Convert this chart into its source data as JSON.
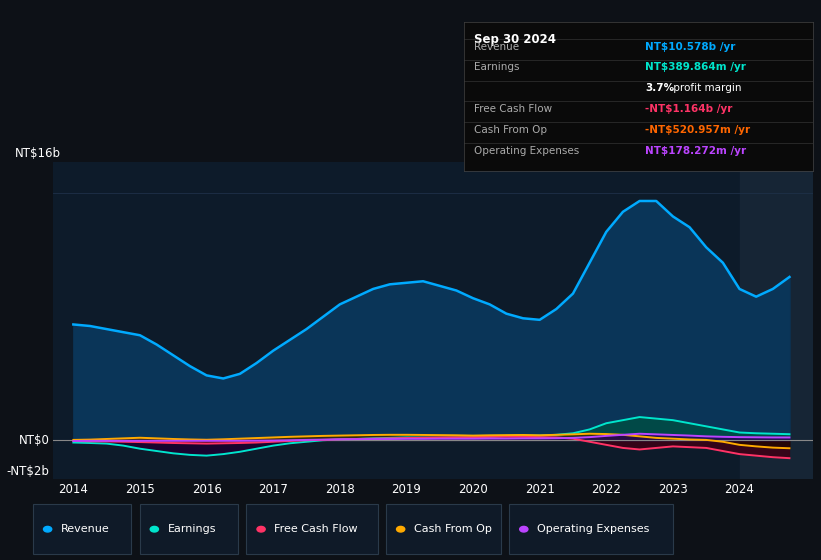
{
  "bg_color": "#0d1117",
  "plot_bg_color": "#0d1b2a",
  "plot_bg_shade": "#111d2e",
  "grid_color": "#1e3048",
  "shade_color": "#162535",
  "x_years": [
    2014.0,
    2014.25,
    2014.5,
    2014.75,
    2015.0,
    2015.25,
    2015.5,
    2015.75,
    2016.0,
    2016.25,
    2016.5,
    2016.75,
    2017.0,
    2017.25,
    2017.5,
    2017.75,
    2018.0,
    2018.25,
    2018.5,
    2018.75,
    2019.0,
    2019.25,
    2019.5,
    2019.75,
    2020.0,
    2020.25,
    2020.5,
    2020.75,
    2021.0,
    2021.25,
    2021.5,
    2021.75,
    2022.0,
    2022.25,
    2022.5,
    2022.75,
    2023.0,
    2023.25,
    2023.5,
    2023.75,
    2024.0,
    2024.25,
    2024.5,
    2024.75
  ],
  "revenue": [
    7.5,
    7.4,
    7.2,
    7.0,
    6.8,
    6.2,
    5.5,
    4.8,
    4.2,
    4.0,
    4.3,
    5.0,
    5.8,
    6.5,
    7.2,
    8.0,
    8.8,
    9.3,
    9.8,
    10.1,
    10.2,
    10.3,
    10.0,
    9.7,
    9.2,
    8.8,
    8.2,
    7.9,
    7.8,
    8.5,
    9.5,
    11.5,
    13.5,
    14.8,
    15.5,
    15.5,
    14.5,
    13.8,
    12.5,
    11.5,
    9.8,
    9.3,
    9.8,
    10.578
  ],
  "earnings": [
    -0.15,
    -0.18,
    -0.22,
    -0.35,
    -0.55,
    -0.7,
    -0.85,
    -0.95,
    -1.0,
    -0.9,
    -0.75,
    -0.55,
    -0.35,
    -0.2,
    -0.1,
    0.0,
    0.05,
    0.08,
    0.12,
    0.15,
    0.18,
    0.17,
    0.16,
    0.17,
    0.18,
    0.22,
    0.28,
    0.3,
    0.3,
    0.35,
    0.45,
    0.7,
    1.1,
    1.3,
    1.5,
    1.4,
    1.3,
    1.1,
    0.9,
    0.7,
    0.5,
    0.45,
    0.42,
    0.39
  ],
  "free_cash_flow": [
    -0.05,
    -0.07,
    -0.08,
    -0.1,
    -0.12,
    -0.15,
    -0.18,
    -0.2,
    -0.22,
    -0.2,
    -0.18,
    -0.15,
    -0.1,
    -0.05,
    0.0,
    0.02,
    0.05,
    0.08,
    0.1,
    0.12,
    0.14,
    0.16,
    0.18,
    0.19,
    0.2,
    0.22,
    0.23,
    0.22,
    0.2,
    0.18,
    0.1,
    -0.1,
    -0.3,
    -0.5,
    -0.6,
    -0.5,
    -0.4,
    -0.45,
    -0.5,
    -0.7,
    -0.9,
    -1.0,
    -1.1,
    -1.164
  ],
  "cash_from_op": [
    0.02,
    0.04,
    0.08,
    0.12,
    0.16,
    0.12,
    0.08,
    0.05,
    0.03,
    0.06,
    0.1,
    0.14,
    0.18,
    0.22,
    0.25,
    0.28,
    0.3,
    0.32,
    0.34,
    0.35,
    0.35,
    0.34,
    0.33,
    0.32,
    0.3,
    0.32,
    0.33,
    0.34,
    0.32,
    0.35,
    0.38,
    0.42,
    0.4,
    0.35,
    0.25,
    0.15,
    0.1,
    0.05,
    0.02,
    -0.1,
    -0.3,
    -0.4,
    -0.48,
    -0.521
  ],
  "operating_expenses": [
    -0.05,
    -0.04,
    -0.04,
    -0.04,
    -0.04,
    -0.04,
    -0.04,
    -0.04,
    -0.04,
    -0.04,
    -0.04,
    -0.03,
    -0.02,
    0.0,
    0.02,
    0.04,
    0.06,
    0.07,
    0.08,
    0.08,
    0.09,
    0.09,
    0.1,
    0.1,
    0.1,
    0.11,
    0.11,
    0.12,
    0.12,
    0.13,
    0.15,
    0.2,
    0.28,
    0.35,
    0.42,
    0.38,
    0.34,
    0.3,
    0.25,
    0.22,
    0.2,
    0.19,
    0.18,
    0.178
  ],
  "ylim": [
    -2.5,
    18.0
  ],
  "xlim": [
    2013.7,
    2025.1
  ],
  "xtick_years": [
    2014,
    2015,
    2016,
    2017,
    2018,
    2019,
    2020,
    2021,
    2022,
    2023,
    2024
  ],
  "revenue_color": "#00aaff",
  "revenue_fill": "#0a3558",
  "earnings_color": "#00e5cc",
  "earnings_fill_pos": "#004d44",
  "earnings_fill_neg": "#1a0030",
  "fcf_color": "#ff3366",
  "fcf_fill_neg": "#3d0015",
  "fcf_fill_pos": "#003d15",
  "cfo_color": "#ffaa00",
  "cfo_fill_pos": "#3d2800",
  "cfo_fill_neg": "#200800",
  "opex_color": "#bb44ff",
  "opex_fill_pos": "#25005a",
  "legend_items": [
    {
      "label": "Revenue",
      "color": "#00aaff"
    },
    {
      "label": "Earnings",
      "color": "#00e5cc"
    },
    {
      "label": "Free Cash Flow",
      "color": "#ff3366"
    },
    {
      "label": "Cash From Op",
      "color": "#ffaa00"
    },
    {
      "label": "Operating Expenses",
      "color": "#bb44ff"
    }
  ],
  "info_box": {
    "date": "Sep 30 2024",
    "rows": [
      {
        "label": "Revenue",
        "value": "NT$10.578b",
        "suffix": " /yr",
        "value_color": "#00aaff"
      },
      {
        "label": "Earnings",
        "value": "NT$389.864m",
        "suffix": " /yr",
        "value_color": "#00e5cc"
      },
      {
        "label": "",
        "value": "3.7%",
        "suffix": " profit margin",
        "value_color": "#ffffff"
      },
      {
        "label": "Free Cash Flow",
        "value": "-NT$1.164b",
        "suffix": " /yr",
        "value_color": "#ff3366"
      },
      {
        "label": "Cash From Op",
        "value": "-NT$520.957m",
        "suffix": " /yr",
        "value_color": "#ff6600"
      },
      {
        "label": "Operating Expenses",
        "value": "NT$178.272m",
        "suffix": " /yr",
        "value_color": "#bb44ff"
      }
    ]
  },
  "shade_start": 2024.0
}
